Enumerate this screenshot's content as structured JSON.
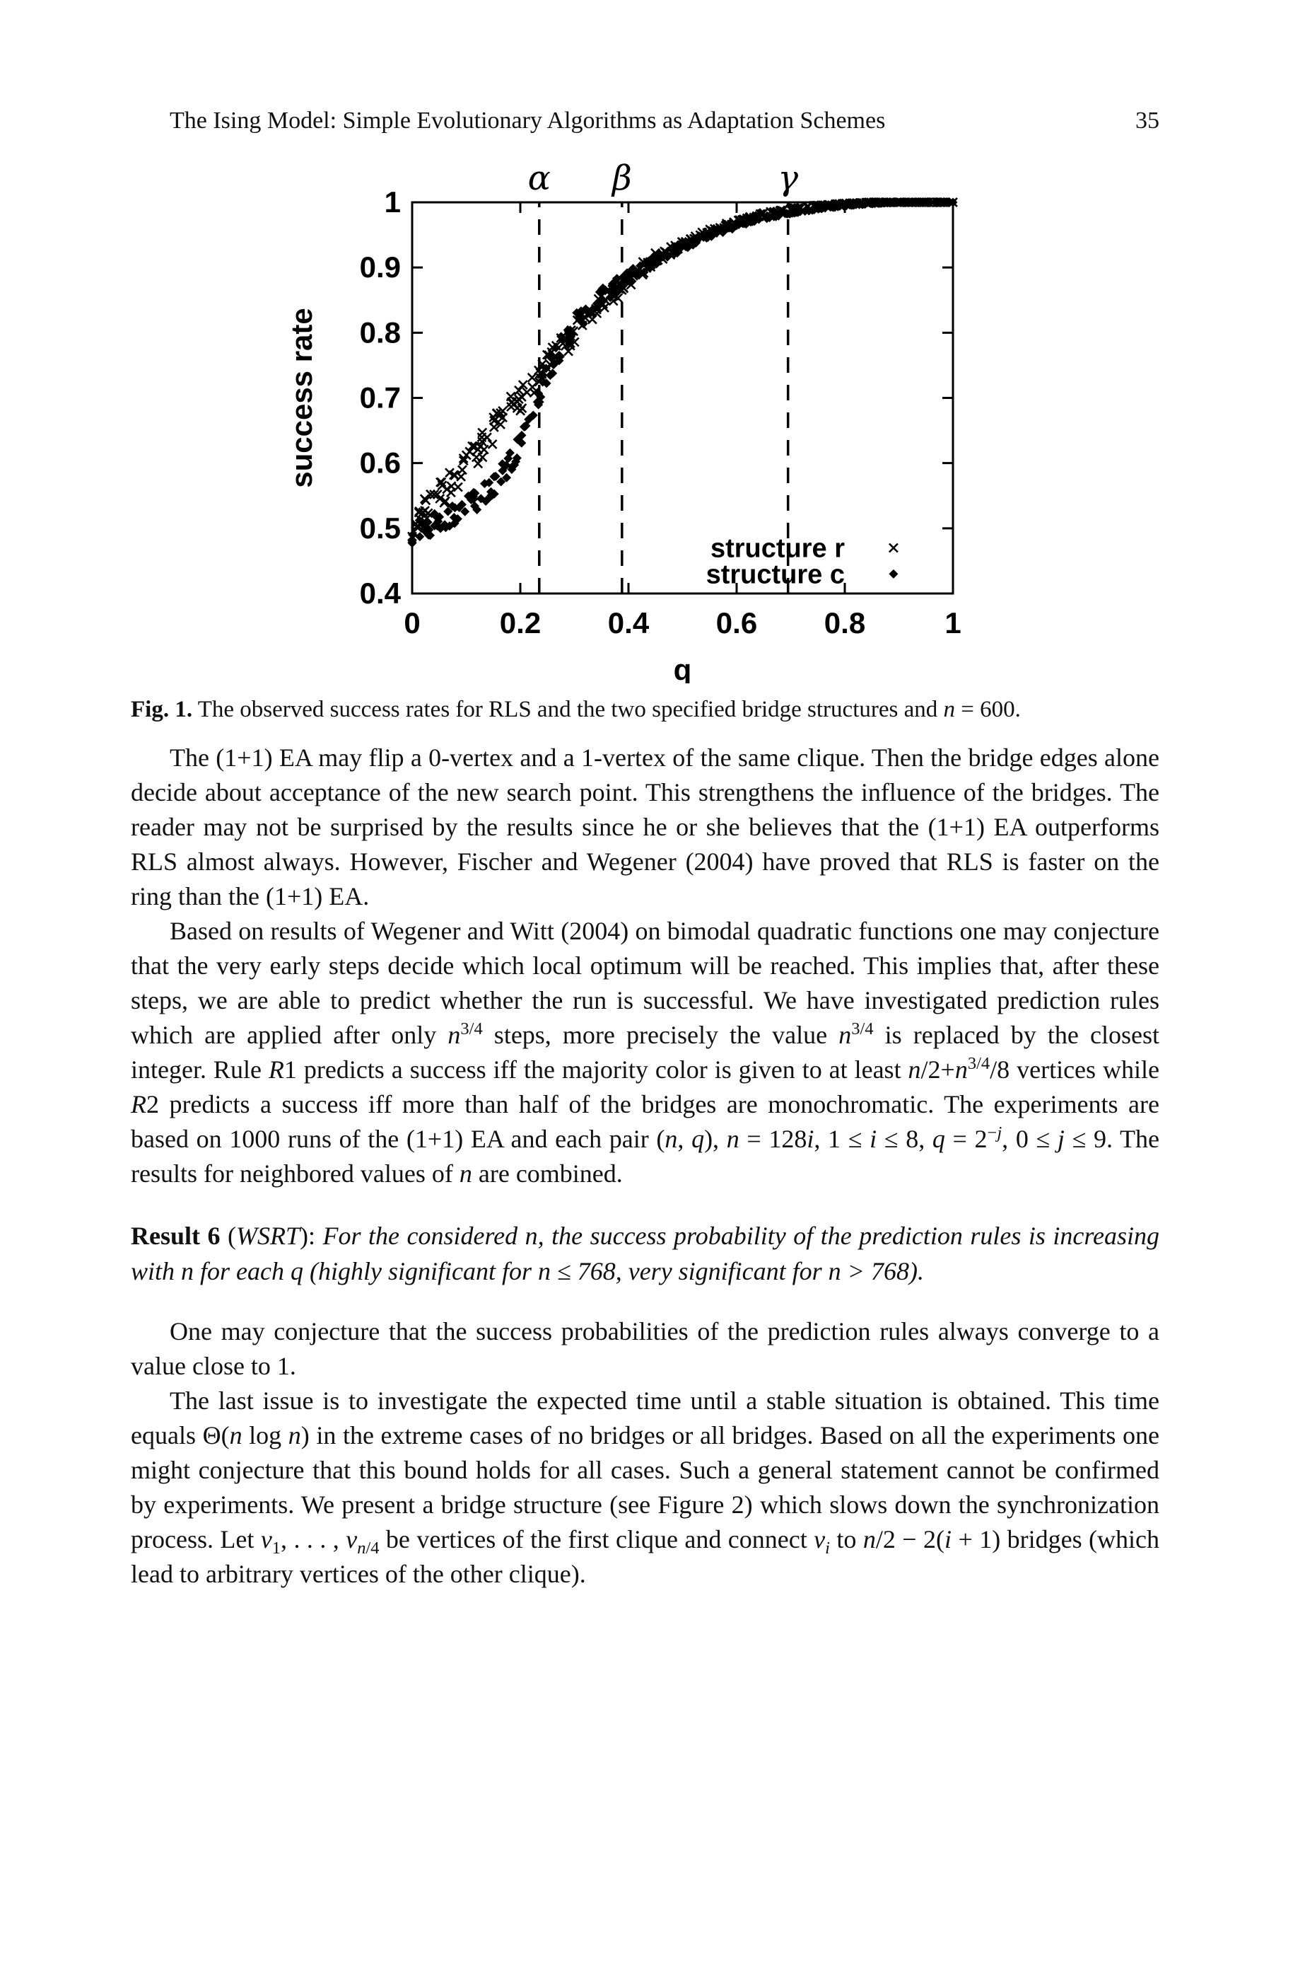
{
  "page": {
    "header": {
      "title": "The Ising Model: Simple Evolutionary Algorithms as Adaptation Schemes",
      "page_number": "35"
    },
    "figure": {
      "caption_html": "<b>Fig. 1.</b> The observed success rates for RLS and the two specified bridge structures and <i>n</i> = 600."
    },
    "paragraphs": [
      {
        "html": "The (1+1) EA may flip a 0-vertex and a 1-vertex of the same clique. Then the bridge edges alone decide about acceptance of the new search point. This strengthens the influence of the bridges. The reader may not be surprised by the results since he or she believes that the (1+1) EA outperforms RLS almost always. However, Fischer and Wegener (2004) have proved that RLS is faster on the ring than the (1+1) EA."
      },
      {
        "html": "Based on results of Wegener and Witt (2004) on bimodal quadratic functions one may conjecture that the very early steps decide which local optimum will be reached. This implies that, after these steps, we are able to predict whether the run is successful. We have investigated prediction rules which are applied after only <i>n</i><sup>3/4</sup> steps, more precisely the value <i>n</i><sup>3/4</sup> is replaced by the closest integer. Rule <i>R</i>1 predicts a success iff the majority color is given to at least <i>n</i>/2+<i>n</i><sup>3/4</sup>/8 vertices while <i>R</i>2 predicts a success iff more than half of the bridges are monochromatic. The experiments are based on 1000 runs of the (1+1) EA and each pair (<i>n</i>, <i>q</i>), <i>n</i> = 128<i>i</i>, 1 ≤ <i>i</i> ≤ 8, <i>q</i> = 2<sup>−<i>j</i></sup>, 0 ≤ <i>j</i> ≤ 9. The results for neighbored values of <i>n</i> are combined."
      },
      {
        "html": "<b>Result 6</b> (<i>WSRT</i>): <i>For the considered n, the success probability of the prediction rules is increasing with n for each q (highly significant for n ≤ 768, very significant for n &gt; 768).</i>"
      },
      {
        "html": "One may conjecture that the success probabilities of the prediction rules always converge to a value close to 1."
      },
      {
        "html": "The last issue is to investigate the expected time until a stable situation is obtained. This time equals Θ(<i>n</i> log <i>n</i>) in the extreme cases of no bridges or all bridges. Based on all the experiments one might conjecture that this bound holds for all cases. Such a general statement cannot be confirmed by experiments. We present a bridge structure (see Figure 2) which slows down the synchronization process. Let <i>v</i><sub>1</sub>, . . . , <i>v</i><sub><i>n</i>/4</sub> be vertices of the first clique and connect <i>v</i><sub><i>i</i></sub> to <i>n</i>/2 − 2(<i>i</i> + 1) bridges (which lead to arbitrary vertices of the other clique)."
      }
    ]
  },
  "chart_data": {
    "type": "scatter",
    "title": "",
    "xlabel": "q",
    "ylabel": "success rate",
    "xlim": [
      0,
      1
    ],
    "ylim": [
      0.4,
      1
    ],
    "x_ticks": [
      0,
      0.2,
      0.4,
      0.6,
      0.8,
      1
    ],
    "x_tick_labels": [
      "0",
      "0.2",
      "0.4",
      "0.6",
      "0.8",
      "1"
    ],
    "y_ticks": [
      0.4,
      0.5,
      0.6,
      0.7,
      0.8,
      0.9,
      1
    ],
    "y_tick_labels": [
      "0.4",
      "0.5",
      "0.6",
      "0.7",
      "0.8",
      "0.9",
      "1"
    ],
    "grid": false,
    "border": true,
    "legend_position": "inside-bottom-right",
    "annotations": [
      {
        "label": "α",
        "x": 0.235,
        "style": "dashed-vline"
      },
      {
        "label": "β",
        "x": 0.388,
        "style": "dashed-vline"
      },
      {
        "label": "γ",
        "x": 0.695,
        "style": "dashed-vline"
      }
    ],
    "series": [
      {
        "name": "structure r",
        "marker": "cross",
        "color": "#000000",
        "seed": 7,
        "n_points": 330,
        "x_jitter": 0.01,
        "y_jitter": 0.02,
        "trend": [
          [
            0,
            0.505
          ],
          [
            0.05,
            0.55
          ],
          [
            0.1,
            0.595
          ],
          [
            0.15,
            0.65
          ],
          [
            0.2,
            0.7
          ],
          [
            0.235,
            0.735
          ],
          [
            0.25,
            0.75
          ],
          [
            0.3,
            0.795
          ],
          [
            0.35,
            0.845
          ],
          [
            0.4,
            0.88
          ],
          [
            0.45,
            0.915
          ],
          [
            0.5,
            0.935
          ],
          [
            0.55,
            0.955
          ],
          [
            0.6,
            0.97
          ],
          [
            0.65,
            0.982
          ],
          [
            0.7,
            0.99
          ],
          [
            0.75,
            0.995
          ],
          [
            0.8,
            0.998
          ],
          [
            0.85,
            1
          ],
          [
            1,
            1
          ]
        ]
      },
      {
        "name": "structure c",
        "marker": "diamond",
        "color": "#000000",
        "seed": 13,
        "n_points": 330,
        "x_jitter": 0.01,
        "y_jitter": 0.018,
        "trend": [
          [
            0,
            0.495
          ],
          [
            0.05,
            0.51
          ],
          [
            0.1,
            0.53
          ],
          [
            0.15,
            0.565
          ],
          [
            0.2,
            0.625
          ],
          [
            0.235,
            0.7
          ],
          [
            0.25,
            0.74
          ],
          [
            0.3,
            0.815
          ],
          [
            0.35,
            0.855
          ],
          [
            0.4,
            0.885
          ],
          [
            0.45,
            0.912
          ],
          [
            0.5,
            0.932
          ],
          [
            0.55,
            0.951
          ],
          [
            0.6,
            0.964
          ],
          [
            0.65,
            0.976
          ],
          [
            0.7,
            0.984
          ],
          [
            0.75,
            0.99
          ],
          [
            0.8,
            0.995
          ],
          [
            0.85,
            0.998
          ],
          [
            0.9,
            1
          ],
          [
            1,
            1
          ]
        ]
      }
    ]
  }
}
